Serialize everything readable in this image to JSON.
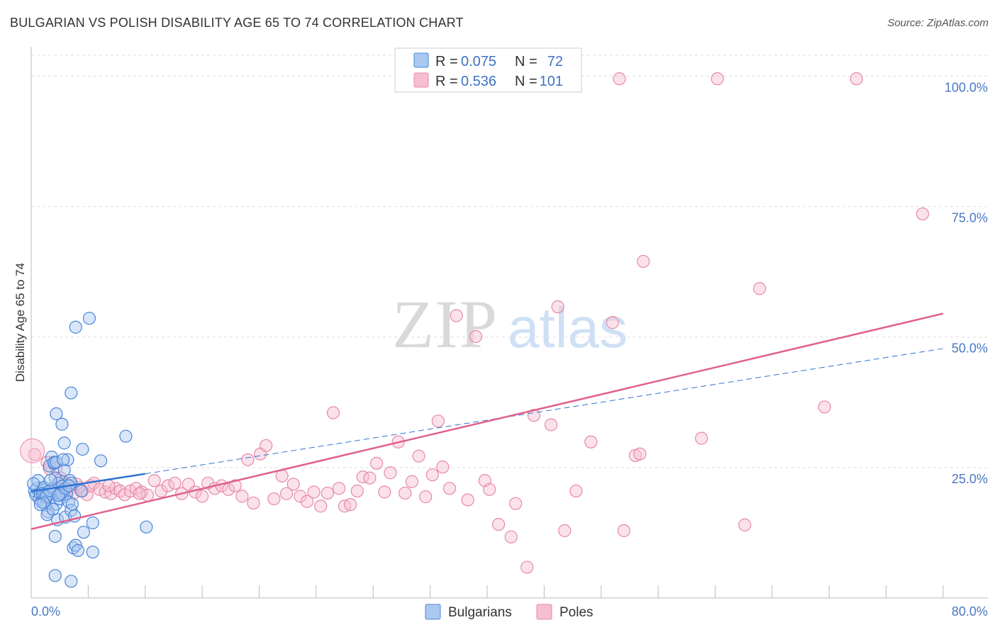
{
  "title": "BULGARIAN VS POLISH DISABILITY AGE 65 TO 74 CORRELATION CHART",
  "source": "Source: ZipAtlas.com",
  "watermark": {
    "zip": "ZIP",
    "atlas": "atlas"
  },
  "chart_data": {
    "type": "scatter",
    "title": "BULGARIAN VS POLISH DISABILITY AGE 65 TO 74 CORRELATION CHART",
    "xlabel": "",
    "ylabel": "Disability Age 65 to 74",
    "xlim": [
      0,
      80
    ],
    "ylim": [
      0,
      104
    ],
    "x_tick_labels": {
      "min": "0.0%",
      "max": "80.0%"
    },
    "y_ticks": [
      {
        "value": 25,
        "label": "25.0%"
      },
      {
        "value": 50,
        "label": "50.0%"
      },
      {
        "value": 75,
        "label": "75.0%"
      },
      {
        "value": 100,
        "label": "100.0%"
      }
    ],
    "grid": true,
    "legend": {
      "position": "top-center",
      "entries": [
        {
          "series": "Bulgarians",
          "r_label": "R =",
          "r_value": "0.075",
          "n_label": "N =",
          "n_value": "72"
        },
        {
          "series": "Poles",
          "r_label": "R =",
          "r_value": "0.536",
          "n_label": "N =",
          "n_value": "101"
        }
      ]
    },
    "bottom_legend": [
      "Bulgarians",
      "Poles"
    ],
    "colors": {
      "Bulgarians_fill": "#aac8f0",
      "Bulgarians_stroke": "#4a86d8",
      "Bulgarians_line": "#2f74d0",
      "Poles_fill": "#f7bed0",
      "Poles_stroke": "#e887a9",
      "Poles_line": "#e0608e",
      "tick_label": "#4a78c2",
      "grid": "#dddddd"
    },
    "series": [
      {
        "name": "Bulgarians",
        "trend": {
          "x0": 0,
          "y0": 20.4,
          "x1": 10,
          "y1": 23.8,
          "dashed_to_x": 80,
          "dashed_to_y": 47.8
        },
        "points": [
          [
            0.3,
            20.5
          ],
          [
            0.4,
            19.8
          ],
          [
            0.5,
            21.0
          ],
          [
            0.6,
            22.5
          ],
          [
            0.7,
            19.0
          ],
          [
            0.8,
            20.0
          ],
          [
            0.9,
            18.4
          ],
          [
            1.0,
            20.8
          ],
          [
            1.1,
            21.2
          ],
          [
            1.2,
            19.5
          ],
          [
            1.3,
            17.8
          ],
          [
            1.4,
            20.2
          ],
          [
            1.5,
            16.5
          ],
          [
            1.6,
            25.3
          ],
          [
            1.7,
            19.2
          ],
          [
            1.8,
            27.0
          ],
          [
            1.9,
            21.0
          ],
          [
            2.0,
            25.8
          ],
          [
            2.1,
            23.0
          ],
          [
            2.2,
            18.0
          ],
          [
            2.3,
            15.0
          ],
          [
            2.4,
            22.0
          ],
          [
            2.5,
            19.0
          ],
          [
            2.6,
            20.5
          ],
          [
            2.7,
            21.4
          ],
          [
            2.8,
            19.8
          ],
          [
            2.9,
            24.5
          ],
          [
            3.0,
            15.5
          ],
          [
            3.1,
            20.0
          ],
          [
            3.2,
            26.5
          ],
          [
            3.3,
            18.4
          ],
          [
            3.4,
            22.5
          ],
          [
            3.5,
            16.8
          ],
          [
            3.6,
            18.0
          ],
          [
            3.7,
            9.6
          ],
          [
            3.8,
            15.7
          ],
          [
            3.9,
            10.1
          ],
          [
            4.1,
            9.1
          ],
          [
            4.4,
            20.5
          ],
          [
            1.0,
            20.0
          ],
          [
            1.3,
            19.4
          ],
          [
            1.6,
            20.6
          ],
          [
            2.0,
            26.0
          ],
          [
            2.2,
            26.0
          ],
          [
            2.8,
            26.5
          ],
          [
            2.6,
            20.0
          ],
          [
            3.5,
            22.0
          ],
          [
            2.1,
            11.8
          ],
          [
            2.1,
            4.3
          ],
          [
            3.5,
            3.2
          ],
          [
            2.9,
            29.7
          ],
          [
            2.7,
            33.3
          ],
          [
            2.2,
            35.3
          ],
          [
            3.5,
            39.3
          ],
          [
            3.9,
            51.9
          ],
          [
            5.1,
            53.6
          ],
          [
            4.5,
            28.5
          ],
          [
            6.1,
            26.3
          ],
          [
            8.3,
            31.0
          ],
          [
            10.1,
            13.6
          ],
          [
            4.6,
            12.6
          ],
          [
            5.4,
            14.4
          ],
          [
            5.4,
            8.8
          ],
          [
            1.1,
            18.2
          ],
          [
            1.4,
            16.0
          ],
          [
            1.9,
            17.0
          ],
          [
            2.4,
            19.7
          ],
          [
            3.0,
            21.0
          ],
          [
            3.3,
            21.5
          ],
          [
            0.2,
            21.9
          ],
          [
            0.8,
            17.9
          ],
          [
            1.7,
            22.6
          ]
        ]
      },
      {
        "name": "Poles",
        "trend": {
          "x0": 0,
          "y0": 13.2,
          "x1": 80,
          "y1": 54.5
        },
        "points": [
          [
            0.3,
            27.5
          ],
          [
            1.4,
            26.0
          ],
          [
            1.6,
            24.8
          ],
          [
            2.2,
            25.0
          ],
          [
            2.6,
            23.0
          ],
          [
            3.1,
            22.0
          ],
          [
            3.3,
            20.8
          ],
          [
            3.7,
            20.0
          ],
          [
            4.2,
            21.2
          ],
          [
            4.5,
            20.5
          ],
          [
            4.9,
            19.8
          ],
          [
            5.2,
            21.5
          ],
          [
            5.5,
            22.0
          ],
          [
            6.0,
            20.8
          ],
          [
            6.5,
            20.3
          ],
          [
            7.0,
            20.0
          ],
          [
            7.4,
            21.0
          ],
          [
            7.8,
            20.5
          ],
          [
            8.2,
            19.8
          ],
          [
            8.7,
            20.5
          ],
          [
            9.2,
            21.0
          ],
          [
            9.7,
            20.3
          ],
          [
            10.2,
            19.7
          ],
          [
            10.8,
            22.5
          ],
          [
            11.4,
            20.5
          ],
          [
            12.0,
            21.5
          ],
          [
            12.6,
            22.0
          ],
          [
            13.2,
            20.0
          ],
          [
            13.8,
            21.8
          ],
          [
            14.4,
            20.3
          ],
          [
            15.0,
            19.5
          ],
          [
            15.5,
            22.0
          ],
          [
            16.1,
            21.0
          ],
          [
            16.7,
            21.5
          ],
          [
            17.3,
            20.8
          ],
          [
            17.9,
            21.5
          ],
          [
            18.5,
            19.5
          ],
          [
            19.0,
            26.5
          ],
          [
            19.5,
            18.2
          ],
          [
            20.1,
            27.6
          ],
          [
            20.6,
            29.2
          ],
          [
            21.3,
            19.0
          ],
          [
            22.0,
            23.4
          ],
          [
            22.4,
            20.0
          ],
          [
            23.0,
            21.8
          ],
          [
            23.6,
            19.5
          ],
          [
            24.2,
            18.5
          ],
          [
            24.8,
            20.3
          ],
          [
            25.4,
            17.6
          ],
          [
            26.0,
            20.1
          ],
          [
            26.5,
            35.5
          ],
          [
            27.0,
            21.0
          ],
          [
            27.5,
            17.6
          ],
          [
            28.0,
            17.9
          ],
          [
            28.6,
            20.5
          ],
          [
            29.1,
            23.2
          ],
          [
            29.7,
            23.0
          ],
          [
            30.3,
            25.8
          ],
          [
            31.0,
            20.3
          ],
          [
            31.5,
            24.0
          ],
          [
            32.2,
            29.9
          ],
          [
            32.8,
            20.1
          ],
          [
            33.4,
            22.3
          ],
          [
            34.0,
            27.2
          ],
          [
            34.6,
            19.4
          ],
          [
            35.2,
            23.6
          ],
          [
            35.7,
            33.9
          ],
          [
            36.1,
            25.1
          ],
          [
            36.7,
            21.0
          ],
          [
            37.3,
            54.1
          ],
          [
            38.3,
            18.8
          ],
          [
            39.0,
            50.1
          ],
          [
            39.8,
            22.5
          ],
          [
            40.2,
            20.8
          ],
          [
            41.0,
            14.1
          ],
          [
            42.1,
            11.7
          ],
          [
            42.5,
            18.1
          ],
          [
            43.5,
            5.9
          ],
          [
            44.1,
            35.0
          ],
          [
            45.6,
            33.2
          ],
          [
            46.2,
            55.8
          ],
          [
            46.8,
            12.9
          ],
          [
            47.8,
            20.5
          ],
          [
            49.1,
            29.9
          ],
          [
            51.0,
            52.8
          ],
          [
            52.0,
            12.9
          ],
          [
            51.6,
            99.5
          ],
          [
            53.0,
            27.3
          ],
          [
            53.4,
            27.6
          ],
          [
            53.7,
            64.5
          ],
          [
            58.8,
            30.6
          ],
          [
            60.2,
            99.5
          ],
          [
            62.6,
            14.0
          ],
          [
            63.9,
            59.3
          ],
          [
            69.6,
            36.6
          ],
          [
            72.4,
            99.5
          ],
          [
            78.2,
            73.6
          ],
          [
            2.5,
            22.5
          ],
          [
            4.0,
            21.8
          ],
          [
            6.8,
            21.5
          ],
          [
            9.5,
            20.0
          ]
        ]
      }
    ]
  }
}
